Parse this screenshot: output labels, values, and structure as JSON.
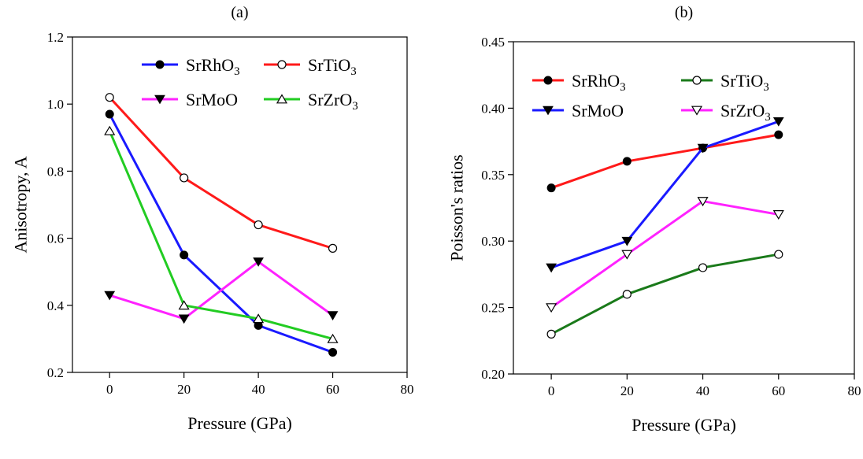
{
  "chart_data": [
    {
      "type": "line",
      "panel": "(a)",
      "xlabel": "Pressure (GPa)",
      "ylabel": "Anisotropy, A",
      "xlim": [
        -10,
        80
      ],
      "ylim": [
        0.2,
        1.2
      ],
      "xticks": [
        0,
        20,
        40,
        60,
        80
      ],
      "yticks": [
        0.2,
        0.4,
        0.6,
        0.8,
        1.0,
        1.2
      ],
      "ytick_labels": [
        "0.2",
        "0.4",
        "0.6",
        "0.8",
        "1.0",
        "1.2"
      ],
      "x": [
        0,
        20,
        40,
        60
      ],
      "legend_position": "top-right",
      "series": [
        {
          "name": "SrRhO3",
          "label_main": "SrRhO",
          "label_sub": "3",
          "color": "#1a1aff",
          "marker": "filled-circle",
          "values": [
            0.97,
            0.55,
            0.34,
            0.26
          ]
        },
        {
          "name": "SrTiO3",
          "label_main": "SrTiO",
          "label_sub": "3",
          "color": "#ff1a1a",
          "marker": "open-circle",
          "values": [
            1.02,
            0.78,
            0.64,
            0.57
          ]
        },
        {
          "name": "SrMoO",
          "label_main": "SrMoO",
          "label_sub": "",
          "color": "#ff22ff",
          "marker": "filled-triangle-down",
          "values": [
            0.43,
            0.36,
            0.53,
            0.37
          ]
        },
        {
          "name": "SrZrO3",
          "label_main": "SrZrO",
          "label_sub": "3",
          "color": "#22cc22",
          "marker": "open-triangle-up",
          "values": [
            0.92,
            0.4,
            0.36,
            0.3
          ]
        }
      ]
    },
    {
      "type": "line",
      "panel": "(b)",
      "xlabel": "Pressure (GPa)",
      "ylabel": "Poisson's ratios",
      "xlim": [
        -10,
        80
      ],
      "ylim": [
        0.2,
        0.45
      ],
      "xticks": [
        0,
        20,
        40,
        60,
        80
      ],
      "yticks": [
        0.2,
        0.25,
        0.3,
        0.35,
        0.4,
        0.45
      ],
      "ytick_labels": [
        "0.20",
        "0.25",
        "0.30",
        "0.35",
        "0.40",
        "0.45"
      ],
      "x": [
        0,
        20,
        40,
        60
      ],
      "legend_position": "top",
      "series": [
        {
          "name": "SrRhO3",
          "label_main": "SrRhO",
          "label_sub": "3",
          "color": "#ff1a1a",
          "marker": "filled-circle",
          "values": [
            0.34,
            0.36,
            0.37,
            0.38
          ]
        },
        {
          "name": "SrTiO3",
          "label_main": "SrTiO",
          "label_sub": "3",
          "color": "#1a7a1a",
          "marker": "open-circle",
          "values": [
            0.23,
            0.26,
            0.28,
            0.29
          ]
        },
        {
          "name": "SrMoO",
          "label_main": "SrMoO",
          "label_sub": "",
          "color": "#1a1aff",
          "marker": "filled-triangle-down",
          "values": [
            0.28,
            0.3,
            0.37,
            0.39
          ]
        },
        {
          "name": "SrZrO3",
          "label_main": "SrZrO",
          "label_sub": "3",
          "color": "#ff22ff",
          "marker": "open-triangle-down",
          "values": [
            0.25,
            0.29,
            0.33,
            0.32
          ]
        }
      ]
    }
  ]
}
